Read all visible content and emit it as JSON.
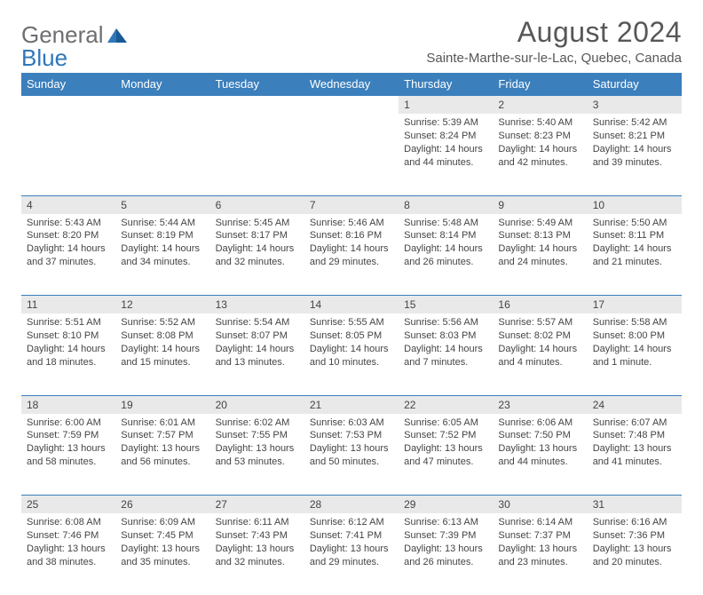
{
  "brand": {
    "general": "General",
    "blue": "Blue"
  },
  "title": "August 2024",
  "location": "Sainte-Marthe-sur-le-Lac, Quebec, Canada",
  "colors": {
    "header_bg": "#3b7fbc",
    "header_text": "#ffffff",
    "daynum_bg": "#e9e9e9",
    "text": "#444444",
    "title_text": "#575757",
    "logo_gray": "#6d6e71",
    "logo_blue": "#2e77b8",
    "row_border": "#3b7fbc"
  },
  "day_headers": [
    "Sunday",
    "Monday",
    "Tuesday",
    "Wednesday",
    "Thursday",
    "Friday",
    "Saturday"
  ],
  "weeks": [
    [
      null,
      null,
      null,
      null,
      {
        "n": "1",
        "sunrise": "5:39 AM",
        "sunset": "8:24 PM",
        "daylight": "14 hours and 44 minutes."
      },
      {
        "n": "2",
        "sunrise": "5:40 AM",
        "sunset": "8:23 PM",
        "daylight": "14 hours and 42 minutes."
      },
      {
        "n": "3",
        "sunrise": "5:42 AM",
        "sunset": "8:21 PM",
        "daylight": "14 hours and 39 minutes."
      }
    ],
    [
      {
        "n": "4",
        "sunrise": "5:43 AM",
        "sunset": "8:20 PM",
        "daylight": "14 hours and 37 minutes."
      },
      {
        "n": "5",
        "sunrise": "5:44 AM",
        "sunset": "8:19 PM",
        "daylight": "14 hours and 34 minutes."
      },
      {
        "n": "6",
        "sunrise": "5:45 AM",
        "sunset": "8:17 PM",
        "daylight": "14 hours and 32 minutes."
      },
      {
        "n": "7",
        "sunrise": "5:46 AM",
        "sunset": "8:16 PM",
        "daylight": "14 hours and 29 minutes."
      },
      {
        "n": "8",
        "sunrise": "5:48 AM",
        "sunset": "8:14 PM",
        "daylight": "14 hours and 26 minutes."
      },
      {
        "n": "9",
        "sunrise": "5:49 AM",
        "sunset": "8:13 PM",
        "daylight": "14 hours and 24 minutes."
      },
      {
        "n": "10",
        "sunrise": "5:50 AM",
        "sunset": "8:11 PM",
        "daylight": "14 hours and 21 minutes."
      }
    ],
    [
      {
        "n": "11",
        "sunrise": "5:51 AM",
        "sunset": "8:10 PM",
        "daylight": "14 hours and 18 minutes."
      },
      {
        "n": "12",
        "sunrise": "5:52 AM",
        "sunset": "8:08 PM",
        "daylight": "14 hours and 15 minutes."
      },
      {
        "n": "13",
        "sunrise": "5:54 AM",
        "sunset": "8:07 PM",
        "daylight": "14 hours and 13 minutes."
      },
      {
        "n": "14",
        "sunrise": "5:55 AM",
        "sunset": "8:05 PM",
        "daylight": "14 hours and 10 minutes."
      },
      {
        "n": "15",
        "sunrise": "5:56 AM",
        "sunset": "8:03 PM",
        "daylight": "14 hours and 7 minutes."
      },
      {
        "n": "16",
        "sunrise": "5:57 AM",
        "sunset": "8:02 PM",
        "daylight": "14 hours and 4 minutes."
      },
      {
        "n": "17",
        "sunrise": "5:58 AM",
        "sunset": "8:00 PM",
        "daylight": "14 hours and 1 minute."
      }
    ],
    [
      {
        "n": "18",
        "sunrise": "6:00 AM",
        "sunset": "7:59 PM",
        "daylight": "13 hours and 58 minutes."
      },
      {
        "n": "19",
        "sunrise": "6:01 AM",
        "sunset": "7:57 PM",
        "daylight": "13 hours and 56 minutes."
      },
      {
        "n": "20",
        "sunrise": "6:02 AM",
        "sunset": "7:55 PM",
        "daylight": "13 hours and 53 minutes."
      },
      {
        "n": "21",
        "sunrise": "6:03 AM",
        "sunset": "7:53 PM",
        "daylight": "13 hours and 50 minutes."
      },
      {
        "n": "22",
        "sunrise": "6:05 AM",
        "sunset": "7:52 PM",
        "daylight": "13 hours and 47 minutes."
      },
      {
        "n": "23",
        "sunrise": "6:06 AM",
        "sunset": "7:50 PM",
        "daylight": "13 hours and 44 minutes."
      },
      {
        "n": "24",
        "sunrise": "6:07 AM",
        "sunset": "7:48 PM",
        "daylight": "13 hours and 41 minutes."
      }
    ],
    [
      {
        "n": "25",
        "sunrise": "6:08 AM",
        "sunset": "7:46 PM",
        "daylight": "13 hours and 38 minutes."
      },
      {
        "n": "26",
        "sunrise": "6:09 AM",
        "sunset": "7:45 PM",
        "daylight": "13 hours and 35 minutes."
      },
      {
        "n": "27",
        "sunrise": "6:11 AM",
        "sunset": "7:43 PM",
        "daylight": "13 hours and 32 minutes."
      },
      {
        "n": "28",
        "sunrise": "6:12 AM",
        "sunset": "7:41 PM",
        "daylight": "13 hours and 29 minutes."
      },
      {
        "n": "29",
        "sunrise": "6:13 AM",
        "sunset": "7:39 PM",
        "daylight": "13 hours and 26 minutes."
      },
      {
        "n": "30",
        "sunrise": "6:14 AM",
        "sunset": "7:37 PM",
        "daylight": "13 hours and 23 minutes."
      },
      {
        "n": "31",
        "sunrise": "6:16 AM",
        "sunset": "7:36 PM",
        "daylight": "13 hours and 20 minutes."
      }
    ]
  ],
  "labels": {
    "sunrise": "Sunrise:",
    "sunset": "Sunset:",
    "daylight": "Daylight:"
  }
}
